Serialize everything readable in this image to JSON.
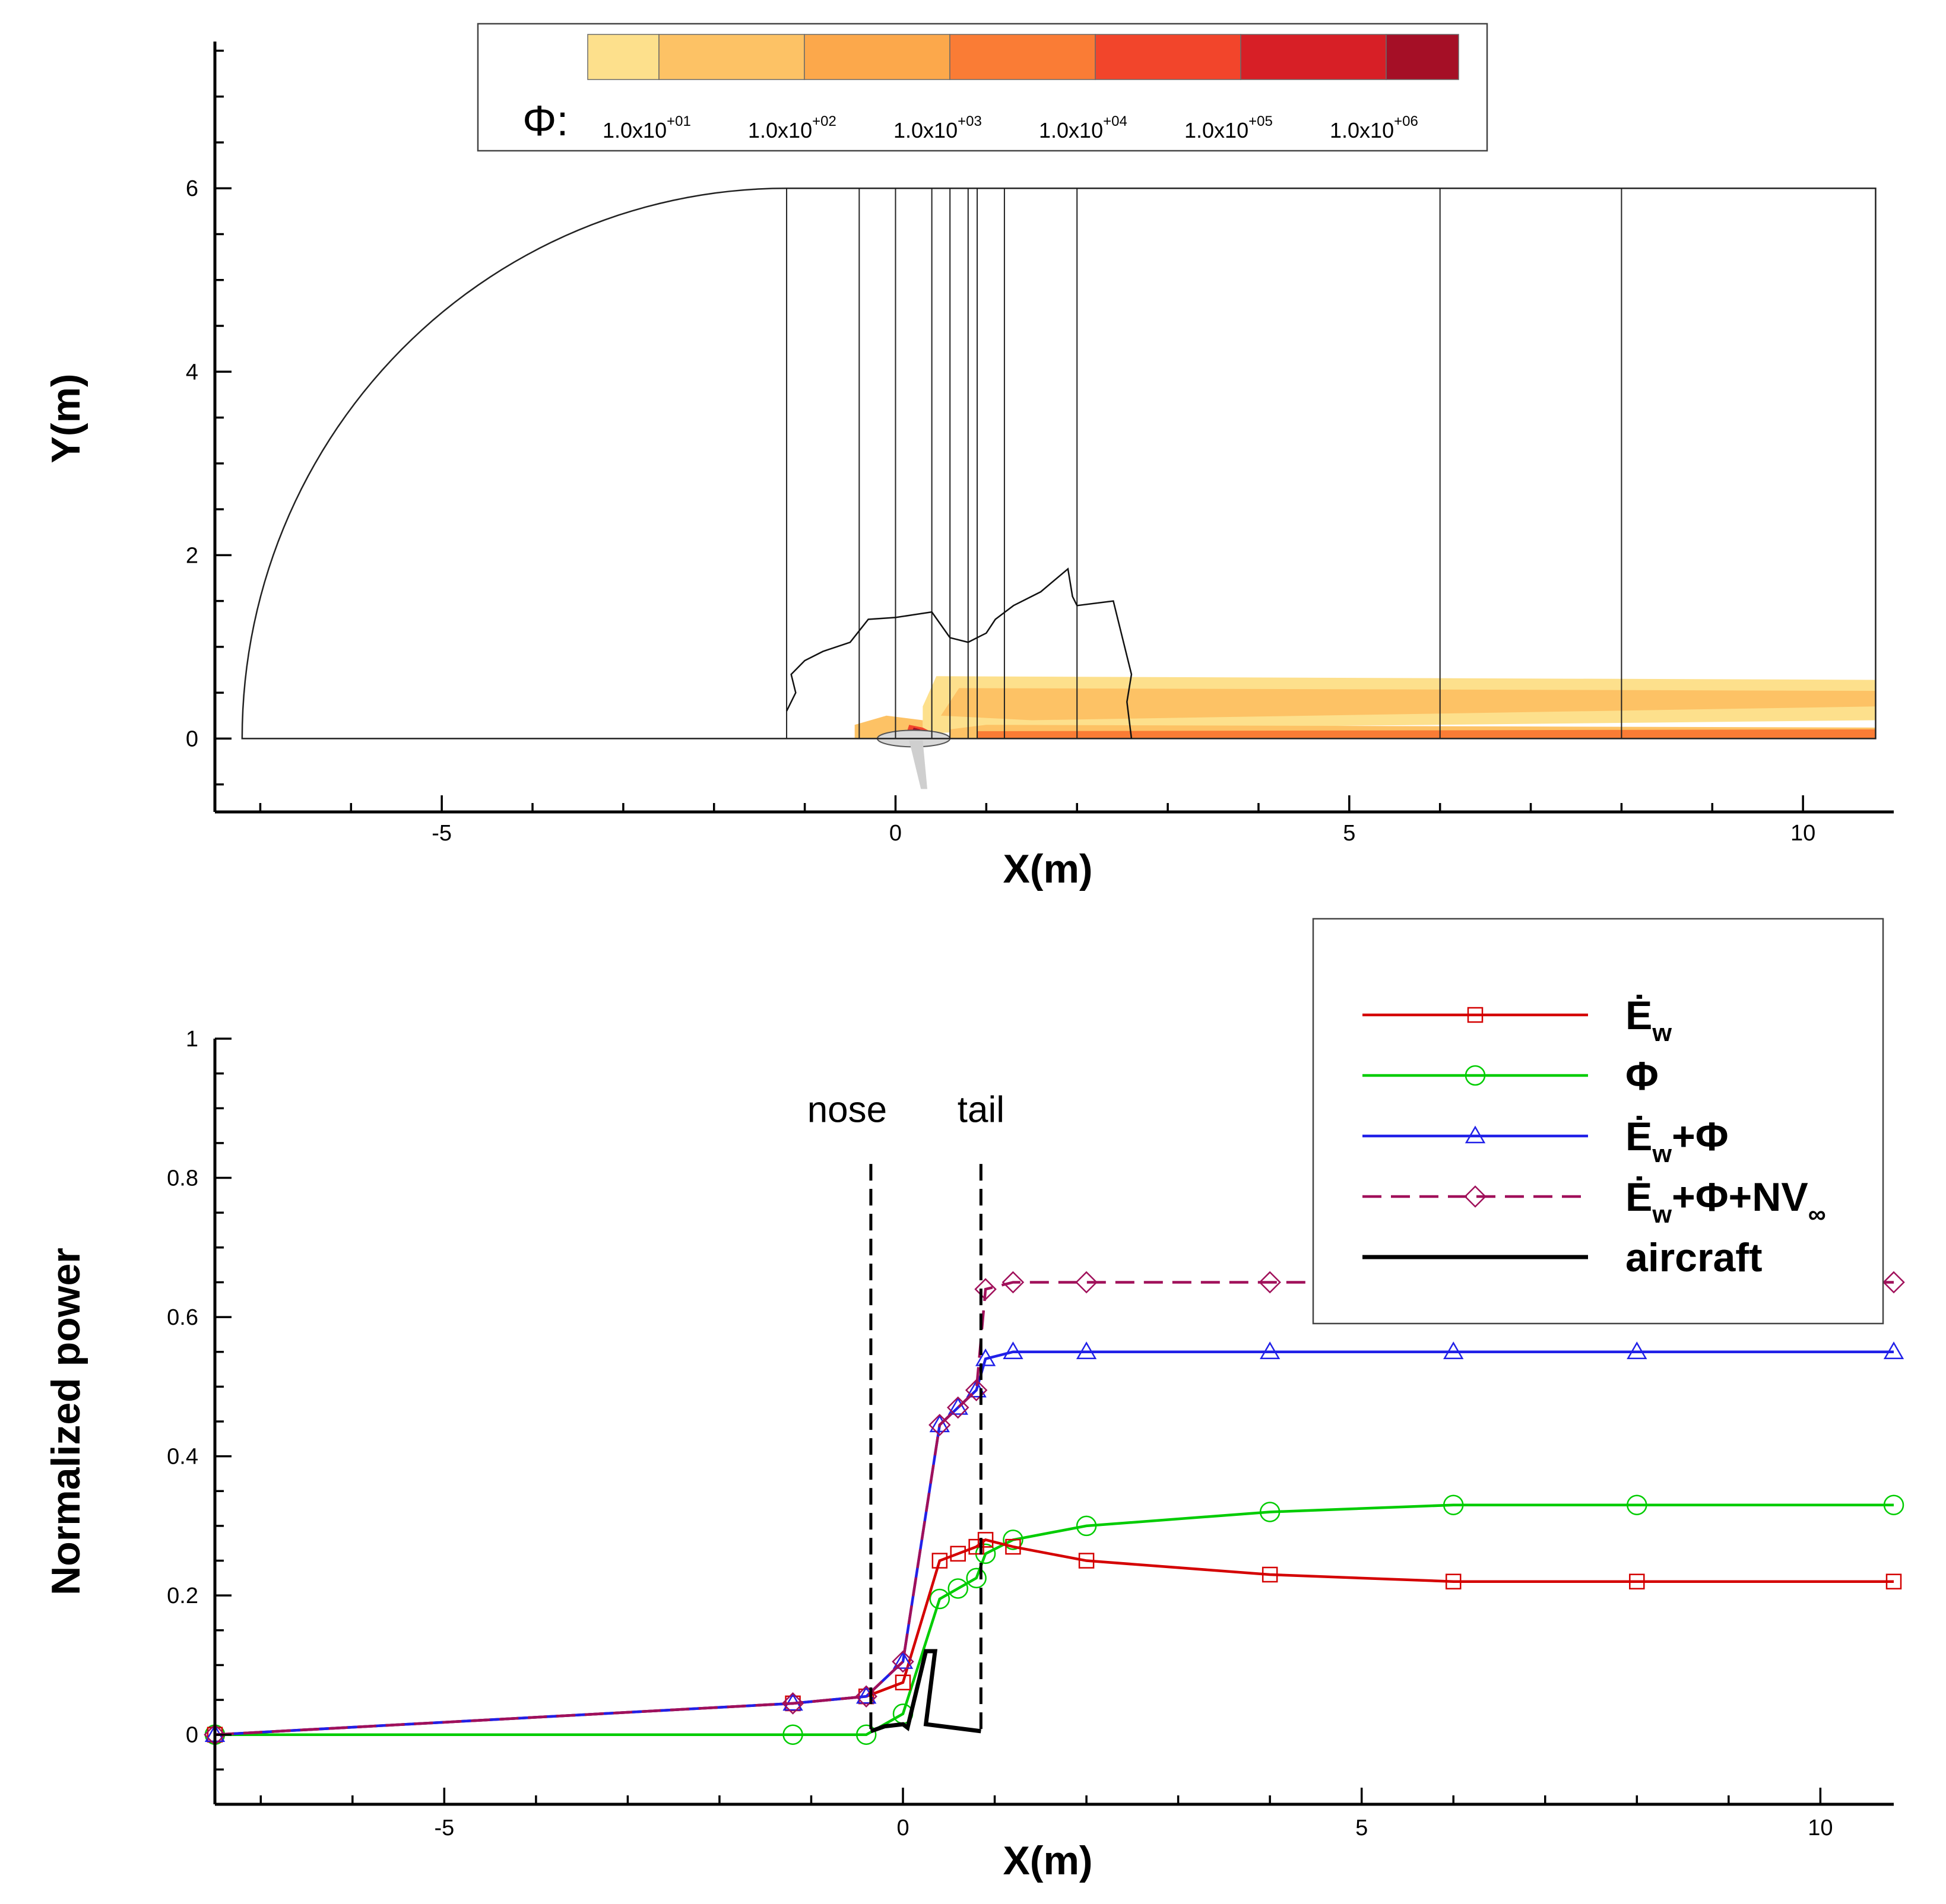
{
  "chart_data": [
    {
      "type": "heatmap",
      "xlabel": "X(m)",
      "ylabel": "Y(m)",
      "xlim": [
        -7.5,
        11
      ],
      "ylim": [
        -0.8,
        7.6
      ],
      "xticks": [
        -5,
        0,
        5,
        10
      ],
      "yticks": [
        0,
        2,
        4,
        6
      ],
      "grid": false,
      "colorbar": {
        "symbol": "Φ:",
        "labels": [
          {
            "base": "1.0x10",
            "exp": "+01"
          },
          {
            "base": "1.0x10",
            "exp": "+02"
          },
          {
            "base": "1.0x10",
            "exp": "+03"
          },
          {
            "base": "1.0x10",
            "exp": "+04"
          },
          {
            "base": "1.0x10",
            "exp": "+05"
          },
          {
            "base": "1.0x10",
            "exp": "+06"
          }
        ],
        "colors": [
          "#fde08c",
          "#fdc265",
          "#fca84b",
          "#fa7c35",
          "#f2452b",
          "#d71f26",
          "#a50f26"
        ]
      },
      "domain_outline": {
        "arc_center_x": -1.2,
        "arc_radius": 6.0,
        "top_y": 6,
        "right_x": 10.8
      },
      "section_planes_x": [
        -1.2,
        -0.4,
        0,
        0.4,
        0.6,
        0.8,
        0.9,
        1.2,
        2.0,
        6.0,
        8.0
      ]
    },
    {
      "type": "line",
      "xlabel": "X(m)",
      "ylabel": "Normalized power",
      "xlim": [
        -7.5,
        10.8
      ],
      "ylim": [
        -0.1,
        1.0
      ],
      "xticks": [
        -5,
        0,
        5,
        10
      ],
      "yticks": [
        0,
        0.2,
        0.4,
        0.6,
        0.8,
        1
      ],
      "grid": false,
      "legend_position": "top-right",
      "annotations": [
        {
          "text": "nose",
          "x": -0.35
        },
        {
          "text": "tail",
          "x": 0.85
        }
      ],
      "series": [
        {
          "name": "Ėw",
          "color": "#d40000",
          "marker": "square",
          "x": [
            -7.5,
            -1.2,
            -0.4,
            0,
            0.4,
            0.6,
            0.8,
            0.9,
            1.2,
            2.0,
            4.0,
            6.0,
            8.0,
            10.8
          ],
          "y": [
            0,
            0.045,
            0.055,
            0.075,
            0.25,
            0.26,
            0.27,
            0.28,
            0.27,
            0.25,
            0.23,
            0.22,
            0.22,
            0.22
          ]
        },
        {
          "name": "Φ",
          "color": "#00cc00",
          "marker": "circle",
          "x": [
            -7.5,
            -1.2,
            -0.4,
            0,
            0.4,
            0.6,
            0.8,
            0.9,
            1.2,
            2.0,
            4.0,
            6.0,
            8.0,
            10.8
          ],
          "y": [
            0,
            0,
            0,
            0.03,
            0.195,
            0.21,
            0.225,
            0.26,
            0.28,
            0.3,
            0.32,
            0.33,
            0.33,
            0.33
          ]
        },
        {
          "name": "Ėw+Φ",
          "color": "#2020e8",
          "marker": "triangle",
          "x": [
            -7.5,
            -1.2,
            -0.4,
            0,
            0.4,
            0.6,
            0.8,
            0.9,
            1.2,
            2.0,
            4.0,
            6.0,
            8.0,
            10.8
          ],
          "y": [
            0,
            0.045,
            0.055,
            0.105,
            0.445,
            0.47,
            0.495,
            0.54,
            0.55,
            0.55,
            0.55,
            0.55,
            0.55,
            0.55
          ]
        },
        {
          "name": "Ėw+Φ+NV∞",
          "color": "#a0105a",
          "marker": "diamond",
          "dashed": true,
          "x": [
            -7.5,
            -1.2,
            -0.4,
            0,
            0.4,
            0.6,
            0.8,
            0.9,
            1.2,
            2.0,
            4.0,
            6.0,
            8.0,
            10.8
          ],
          "y": [
            0,
            0.045,
            0.055,
            0.105,
            0.445,
            0.47,
            0.495,
            0.64,
            0.65,
            0.65,
            0.65,
            0.65,
            0.65,
            0.65
          ]
        },
        {
          "name": "aircraft",
          "color": "#000000",
          "marker": "none",
          "x": [
            -0.35,
            -0.2,
            0,
            0.05,
            0.25,
            0.35,
            0.25,
            0.85
          ],
          "y": [
            0.005,
            0.012,
            0.015,
            0.01,
            0.12,
            0.12,
            0.015,
            0.005
          ]
        }
      ]
    }
  ]
}
